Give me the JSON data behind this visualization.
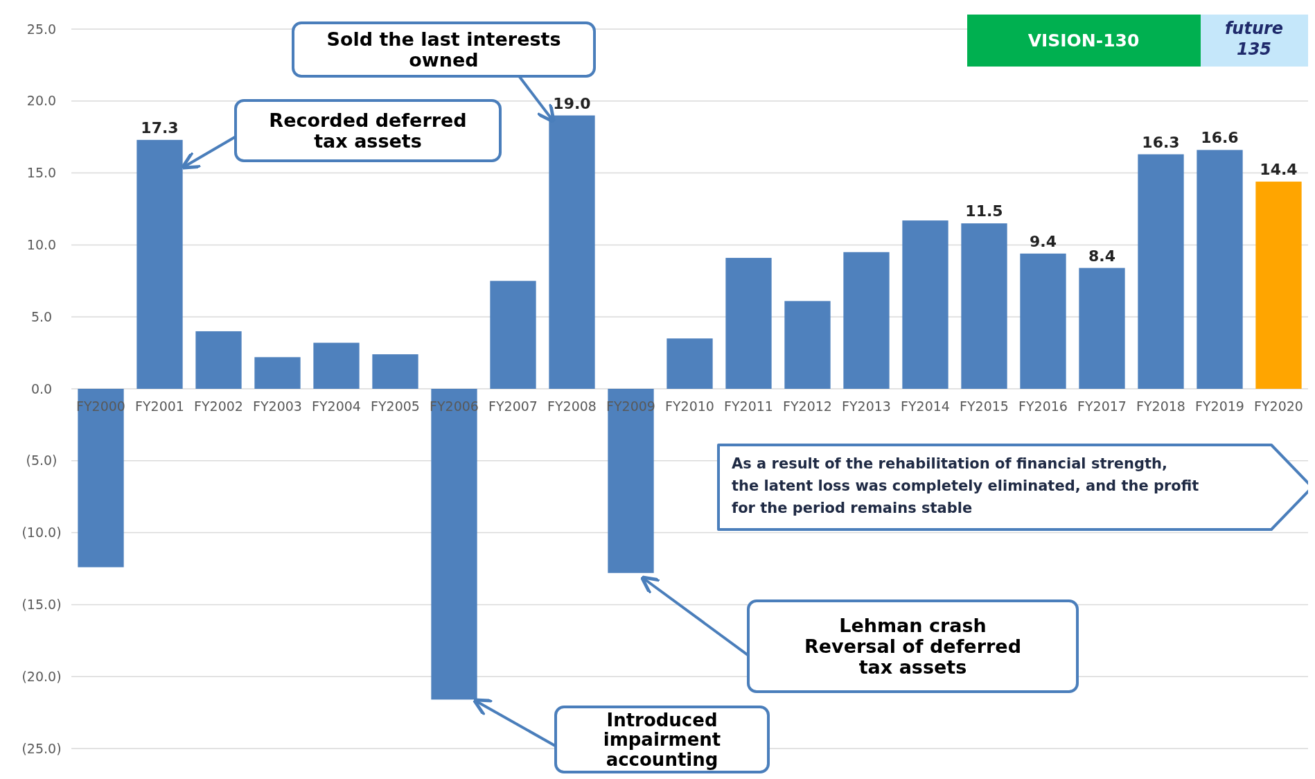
{
  "chart_data": {
    "type": "bar",
    "categories": [
      "FY2000",
      "FY2001",
      "FY2002",
      "FY2003",
      "FY2004",
      "FY2005",
      "FY2006",
      "FY2007",
      "FY2008",
      "FY2009",
      "FY2010",
      "FY2011",
      "FY2012",
      "FY2013",
      "FY2014",
      "FY2015",
      "FY2016",
      "FY2017",
      "FY2018",
      "FY2019",
      "FY2020"
    ],
    "values": [
      -12.4,
      17.3,
      4.0,
      2.2,
      3.2,
      2.4,
      -21.6,
      7.5,
      19.0,
      -12.8,
      3.5,
      9.1,
      6.1,
      9.5,
      11.7,
      11.5,
      9.4,
      8.4,
      16.3,
      16.6,
      14.4
    ],
    "value_labels": [
      null,
      "17.3",
      null,
      null,
      null,
      null,
      null,
      null,
      "19.0",
      null,
      null,
      null,
      null,
      null,
      null,
      "11.5",
      "9.4",
      "8.4",
      "16.3",
      "16.6",
      "14.4"
    ],
    "colors": [
      "#4f81bd",
      "#4f81bd",
      "#4f81bd",
      "#4f81bd",
      "#4f81bd",
      "#4f81bd",
      "#4f81bd",
      "#4f81bd",
      "#4f81bd",
      "#4f81bd",
      "#4f81bd",
      "#4f81bd",
      "#4f81bd",
      "#4f81bd",
      "#4f81bd",
      "#4f81bd",
      "#4f81bd",
      "#4f81bd",
      "#4f81bd",
      "#4f81bd",
      "#ffa500"
    ],
    "ylim": [
      -25,
      25
    ],
    "yticks": [
      {
        "value": -25,
        "label": "(25.0)"
      },
      {
        "value": -20,
        "label": "(20.0)"
      },
      {
        "value": -15,
        "label": "(15.0)"
      },
      {
        "value": -10,
        "label": "(10.0)"
      },
      {
        "value": -5,
        "label": "(5.0)"
      },
      {
        "value": 0,
        "label": "0.0"
      },
      {
        "value": 5,
        "label": "5.0"
      },
      {
        "value": 10,
        "label": "10.0"
      },
      {
        "value": 15,
        "label": "15.0"
      },
      {
        "value": 20,
        "label": "20.0"
      },
      {
        "value": 25,
        "label": "25.0"
      }
    ],
    "grid": "y",
    "annotations": [
      "Recorded deferred tax assets",
      "Sold the last interests owned",
      "Introduced impairment accounting",
      "Lehman crash Reversal of deferred tax assets",
      "As a result of the rehabilitation of financial strength, the latent loss was completely eliminated, and the profit for the period remains stable",
      "VISION-130",
      "future 135"
    ]
  }
}
